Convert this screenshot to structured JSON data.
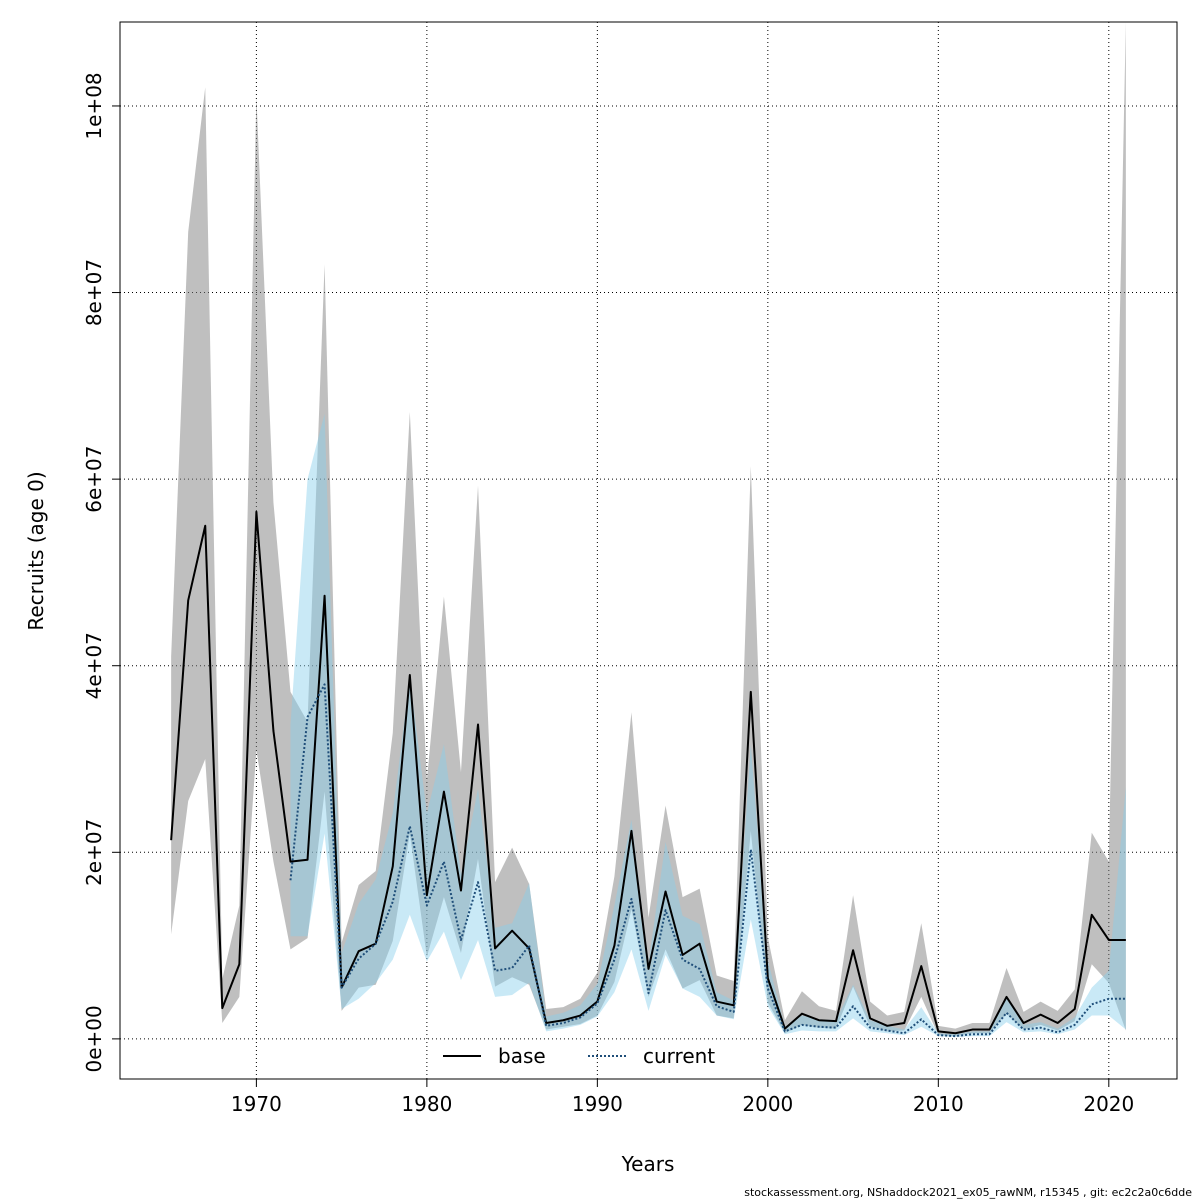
{
  "chart_data": {
    "type": "line",
    "title": "",
    "xlabel": "Years",
    "ylabel": "Recruits (age 0)",
    "xlim": [
      1962,
      2024
    ],
    "ylim": [
      -4300000,
      109000000
    ],
    "x_ticks": [
      1970,
      1980,
      1990,
      2000,
      2010,
      2020
    ],
    "x_tick_labels": [
      "1970",
      "1980",
      "1990",
      "2000",
      "2010",
      "2020"
    ],
    "y_ticks": [
      0,
      20000000,
      40000000,
      60000000,
      80000000,
      100000000
    ],
    "y_tick_labels": [
      "0e+00",
      "2e+07",
      "4e+07",
      "6e+07",
      "8e+07",
      "1e+08"
    ],
    "grid": true,
    "legend_position": "bottom-center",
    "series": [
      {
        "name": "base",
        "color": "#000000",
        "band_color": "#808080",
        "line_style": "solid",
        "x": [
          1965,
          1966,
          1967,
          1968,
          1969,
          1970,
          1971,
          1972,
          1973,
          1974,
          1975,
          1976,
          1977,
          1978,
          1979,
          1980,
          1981,
          1982,
          1983,
          1984,
          1985,
          1986,
          1987,
          1988,
          1989,
          1990,
          1991,
          1992,
          1993,
          1994,
          1995,
          1996,
          1997,
          1998,
          1999,
          2000,
          2001,
          2002,
          2003,
          2004,
          2005,
          2006,
          2007,
          2008,
          2009,
          2010,
          2011,
          2012,
          2013,
          2014,
          2015,
          2016,
          2017,
          2018,
          2019,
          2020,
          2021
        ],
        "y": [
          21300000,
          47000000,
          55000000,
          3300000,
          8000000,
          56500000,
          33000000,
          19000000,
          19200000,
          47500000,
          5500000,
          9400000,
          10200000,
          18500000,
          39000000,
          15400000,
          26500000,
          15900000,
          33700000,
          9700000,
          11600000,
          9700000,
          1700000,
          2000000,
          2500000,
          4000000,
          10000000,
          22300000,
          7500000,
          15800000,
          9000000,
          10200000,
          4000000,
          3600000,
          37200000,
          6500000,
          1100000,
          2700000,
          2000000,
          1900000,
          9500000,
          2200000,
          1400000,
          1700000,
          7800000,
          800000,
          600000,
          1000000,
          1000000,
          4500000,
          1700000,
          2600000,
          1700000,
          3200000,
          13300000,
          10600000,
          10600000
        ],
        "lower": [
          11200000,
          25500000,
          30000000,
          1700000,
          4500000,
          31000000,
          19000000,
          9600000,
          10800000,
          26500000,
          3000000,
          5500000,
          5800000,
          10500000,
          22000000,
          8800000,
          15200000,
          9200000,
          19300000,
          5600000,
          6600000,
          5800000,
          1000000,
          1300000,
          1600000,
          2500000,
          6100000,
          13900000,
          4500000,
          9600000,
          5400000,
          6300000,
          2500000,
          2200000,
          22300000,
          3900000,
          600000,
          1500000,
          1200000,
          1100000,
          5600000,
          1300000,
          800000,
          900000,
          4500000,
          400000,
          300000,
          600000,
          600000,
          2700000,
          1000000,
          1500000,
          900000,
          1900000,
          8000000,
          6000000,
          900000
        ],
        "upper": [
          41000000,
          86500000,
          102000000,
          6400000,
          14300000,
          101000000,
          57500000,
          37200000,
          34000000,
          83000000,
          10300000,
          16500000,
          18000000,
          32800000,
          67200000,
          27700000,
          47400000,
          28600000,
          59300000,
          16800000,
          20500000,
          16600000,
          3200000,
          3400000,
          4300000,
          7100000,
          17400000,
          35000000,
          13000000,
          25000000,
          15200000,
          16100000,
          6800000,
          6200000,
          61400000,
          10900000,
          2000000,
          5100000,
          3500000,
          3000000,
          15400000,
          4000000,
          2500000,
          2900000,
          12400000,
          1400000,
          1100000,
          1700000,
          1700000,
          7600000,
          2900000,
          4000000,
          3000000,
          5300000,
          22100000,
          19000000,
          109000000
        ]
      },
      {
        "name": "current",
        "color": "#1f4e79",
        "band_color": "#87ceeb",
        "line_style": "dotted",
        "x": [
          1972,
          1973,
          1974,
          1975,
          1976,
          1977,
          1978,
          1979,
          1980,
          1981,
          1982,
          1983,
          1984,
          1985,
          1986,
          1987,
          1988,
          1989,
          1990,
          1991,
          1992,
          1993,
          1994,
          1995,
          1996,
          1997,
          1998,
          1999,
          2000,
          2001,
          2002,
          2003,
          2004,
          2005,
          2006,
          2007,
          2008,
          2009,
          2010,
          2011,
          2012,
          2013,
          2014,
          2015,
          2016,
          2017,
          2018,
          2019,
          2020,
          2021
        ],
        "y": [
          17000000,
          34500000,
          38000000,
          5500000,
          8600000,
          10200000,
          14700000,
          22800000,
          14300000,
          19000000,
          10600000,
          16800000,
          7300000,
          7600000,
          10000000,
          1400000,
          1700000,
          2300000,
          3800000,
          8500000,
          15000000,
          4900000,
          13800000,
          8500000,
          7500000,
          3500000,
          2900000,
          20300000,
          5400000,
          800000,
          1500000,
          1300000,
          1200000,
          3500000,
          1200000,
          900000,
          600000,
          2100000,
          400000,
          300000,
          500000,
          500000,
          2800000,
          1000000,
          1200000,
          700000,
          1500000,
          3700000,
          4300000,
          4300000
        ],
        "lower": [
          11000000,
          11000000,
          22000000,
          3200000,
          4300000,
          6000000,
          8500000,
          13300000,
          8300000,
          11500000,
          6300000,
          10600000,
          4500000,
          4700000,
          6000000,
          800000,
          1100000,
          1500000,
          2400000,
          5000000,
          9600000,
          3000000,
          9000000,
          5400000,
          4500000,
          2500000,
          2100000,
          12800000,
          3500000,
          500000,
          900000,
          800000,
          800000,
          2200000,
          800000,
          600000,
          400000,
          1300000,
          300000,
          200000,
          300000,
          300000,
          1800000,
          700000,
          800000,
          500000,
          1000000,
          2500000,
          2500000,
          1000000
        ],
        "upper": [
          33700000,
          60000000,
          67000000,
          9200000,
          14500000,
          17100000,
          24200000,
          38700000,
          24200000,
          31600000,
          17600000,
          26800000,
          11900000,
          12400000,
          16700000,
          2400000,
          2800000,
          3600000,
          5900000,
          14300000,
          23500000,
          8100000,
          21100000,
          13200000,
          12300000,
          5000000,
          4100000,
          31500000,
          8400000,
          1300000,
          2500000,
          2100000,
          2000000,
          5800000,
          2000000,
          1400000,
          1000000,
          3400000,
          600000,
          500000,
          800000,
          800000,
          4300000,
          1500000,
          1800000,
          1100000,
          2300000,
          5500000,
          7300000,
          27000000
        ]
      }
    ]
  },
  "footer": "stockassessment.org, NShaddock2021_ex05_rawNM, r15345 , git: ec2c2a0c6dde"
}
